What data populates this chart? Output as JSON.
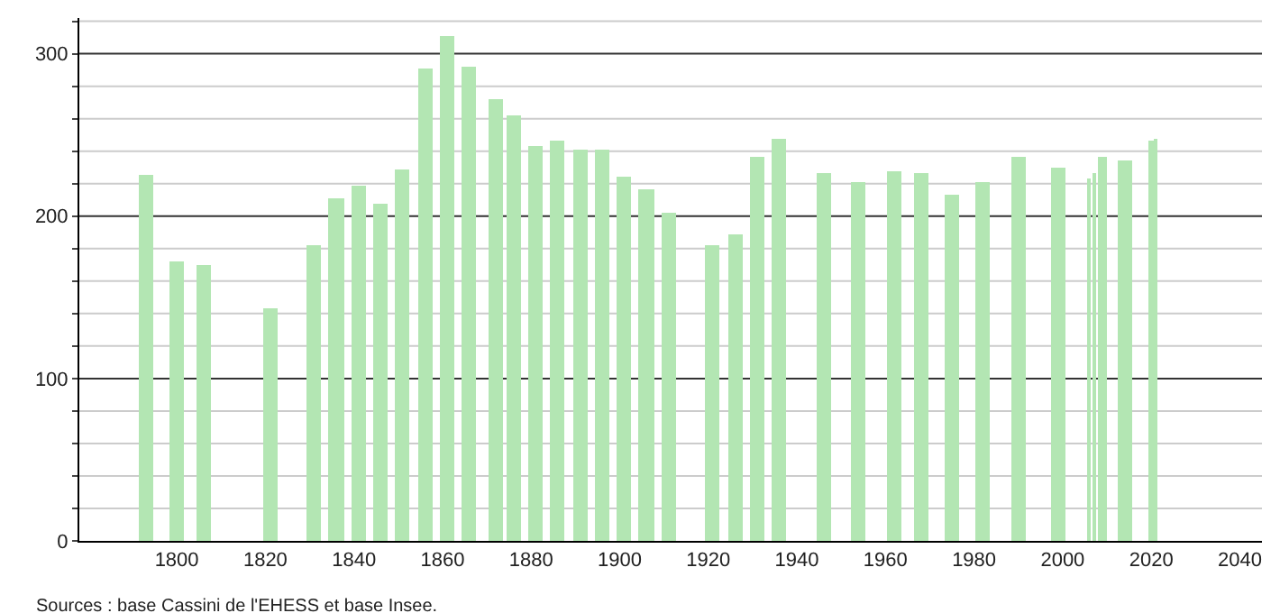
{
  "chart_data": {
    "type": "bar",
    "x": [
      1793,
      1800,
      1806,
      1821,
      1831,
      1836,
      1841,
      1846,
      1851,
      1856,
      1861,
      1866,
      1872,
      1876,
      1881,
      1886,
      1891,
      1896,
      1901,
      1906,
      1911,
      1921,
      1926,
      1931,
      1936,
      1946,
      1954,
      1962,
      1968,
      1975,
      1982,
      1990,
      1999,
      2006,
      2007,
      2009,
      2014,
      2020,
      2021
    ],
    "values": [
      225,
      172,
      170,
      143,
      182,
      211,
      219,
      208,
      229,
      291,
      311,
      292,
      272,
      262,
      243,
      247,
      241,
      241,
      224,
      216,
      202,
      182,
      189,
      237,
      248,
      226,
      221,
      228,
      226,
      213,
      221,
      236,
      230,
      223,
      226,
      237,
      234,
      246,
      248
    ],
    "color": "#b3e6b3",
    "xlim": [
      1778,
      2045
    ],
    "xticks": [
      1800,
      1820,
      1840,
      1860,
      1880,
      1900,
      1920,
      1940,
      1960,
      1980,
      2000,
      2020,
      2040
    ],
    "ylim": [
      0,
      322
    ],
    "yticks": [
      0,
      {
        "value": 20,
        "label": null
      },
      {
        "value": 40,
        "label": null
      },
      {
        "value": 60,
        "label": null
      },
      {
        "value": 80,
        "label": null
      },
      100,
      {
        "value": 120,
        "label": null
      },
      {
        "value": 140,
        "label": null
      },
      {
        "value": 160,
        "label": null
      },
      {
        "value": 180,
        "label": null
      },
      200,
      {
        "value": 220,
        "label": null
      },
      {
        "value": 240,
        "label": null
      },
      {
        "value": 260,
        "label": null
      },
      {
        "value": 280,
        "label": null
      },
      300,
      {
        "value": 320,
        "label": null
      }
    ],
    "grid": "y",
    "annotations": [
      "Sources : base Cassini de l'EHESS et base Insee."
    ]
  }
}
